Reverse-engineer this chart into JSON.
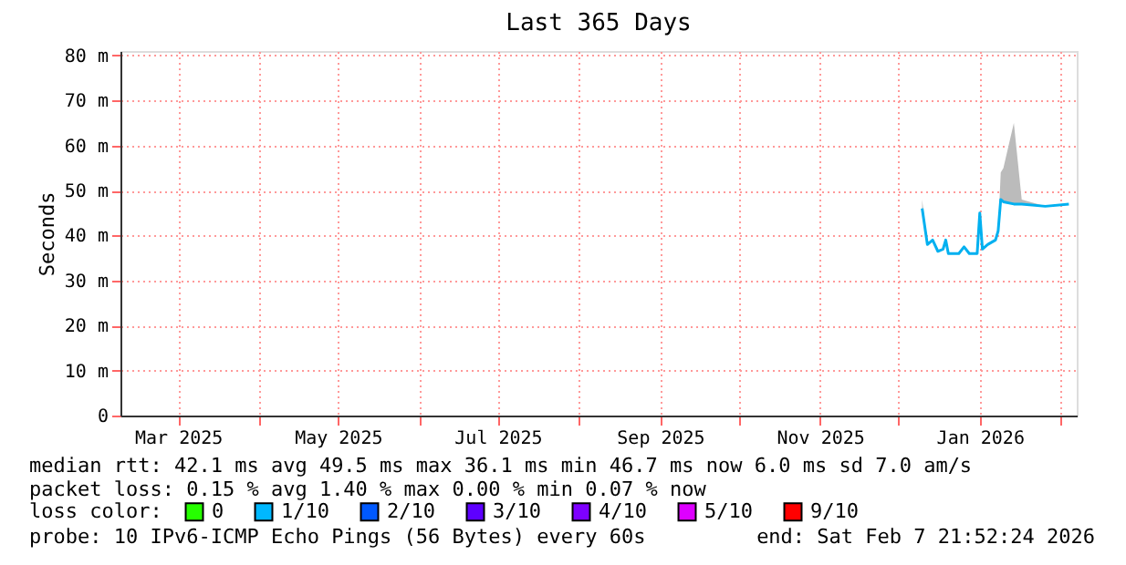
{
  "chart_data": {
    "type": "line",
    "title": "Last 365 Days",
    "ylabel": "Seconds",
    "legend_title": "loss color:",
    "legend": "bottom",
    "xlim": [
      "2025-02-07",
      "2026-02-07"
    ],
    "xticks": [
      {
        "value": "2025-03-01",
        "label": "Mar 2025"
      },
      {
        "value": "2025-04-01",
        "label": null
      },
      {
        "value": "2025-05-01",
        "label": "May 2025"
      },
      {
        "value": "2025-06-01",
        "label": null
      },
      {
        "value": "2025-07-01",
        "label": "Jul 2025"
      },
      {
        "value": "2025-08-01",
        "label": null
      },
      {
        "value": "2025-09-01",
        "label": "Sep 2025"
      },
      {
        "value": "2025-10-01",
        "label": null
      },
      {
        "value": "2025-11-01",
        "label": "Nov 2025"
      },
      {
        "value": "2025-12-01",
        "label": null
      },
      {
        "value": "2026-01-01",
        "label": "Jan 2026"
      },
      {
        "value": "2026-02-01",
        "label": null
      }
    ],
    "ylim": [
      0,
      81
    ],
    "yticks": [
      0,
      {
        "value": 10,
        "label": "10 m"
      },
      {
        "value": 20,
        "label": "20 m"
      },
      {
        "value": 30,
        "label": "30 m"
      },
      {
        "value": 40,
        "label": "40 m"
      },
      {
        "value": 50,
        "label": "50 m"
      },
      {
        "value": 60,
        "label": "60 m"
      },
      {
        "value": 70,
        "label": "70 m"
      },
      {
        "value": 80,
        "label": "80 m"
      }
    ],
    "grid": true,
    "series": [
      {
        "color": "#00b0f0",
        "x": [
          "2025-12-10",
          "2025-12-12",
          "2025-12-14",
          "2025-12-16",
          "2025-12-18",
          "2025-12-19",
          "2025-12-20",
          "2025-12-24",
          "2025-12-26",
          "2025-12-28",
          "2025-12-31",
          "2026-01-01",
          "2026-01-02",
          "2026-01-04",
          "2026-01-07",
          "2026-01-08",
          "2026-01-09",
          "2026-01-10",
          "2026-01-14",
          "2026-01-17",
          "2026-01-26",
          "2026-02-04"
        ],
        "values": [
          46,
          38,
          39,
          36.5,
          37,
          39,
          36,
          36,
          37.5,
          36,
          36,
          45,
          37,
          38,
          39,
          41,
          48,
          47.5,
          47,
          47,
          46.5,
          47
        ],
        "lower": [
          46,
          38,
          39,
          36.5,
          37,
          39,
          36,
          36,
          37.5,
          36,
          36,
          45,
          37,
          38,
          39,
          41,
          48,
          47.5,
          47,
          47,
          46.5,
          47
        ],
        "upper": [
          48,
          38,
          39,
          36.5,
          37,
          39,
          36,
          36,
          37.5,
          36,
          36,
          45,
          37,
          38,
          39,
          41,
          54,
          55,
          65,
          48,
          46.5,
          47
        ]
      },
      {
        "name": "0",
        "color": "#26ff00",
        "values": [
          null
        ]
      },
      {
        "name": "1/10",
        "color": "#00b8ff",
        "values": [
          null
        ]
      },
      {
        "name": "2/10",
        "color": "#0059ff",
        "values": [
          null
        ]
      },
      {
        "name": "3/10",
        "color": "#5e00ff",
        "values": [
          null
        ]
      },
      {
        "name": "4/10",
        "color": "#7e00ff",
        "values": [
          null
        ]
      },
      {
        "name": "5/10",
        "color": "#dd00ff",
        "values": [
          null
        ]
      },
      {
        "name": "9/10",
        "color": "#ff0000",
        "values": [
          null
        ]
      }
    ],
    "annotations": [
      "median rtt:  42.1 ms avg  49.5 ms max  36.1 ms min  46.7 ms now  6.0 ms sd  7.0   am/s",
      "packet loss: 0.15 % avg  1.40 % max  0.00 % min  0.07 % now",
      "probe:       10 IPv6-ICMP Echo Pings (56 Bytes) every 60s",
      "end: Sat Feb  7 21:52:24 2026"
    ]
  }
}
